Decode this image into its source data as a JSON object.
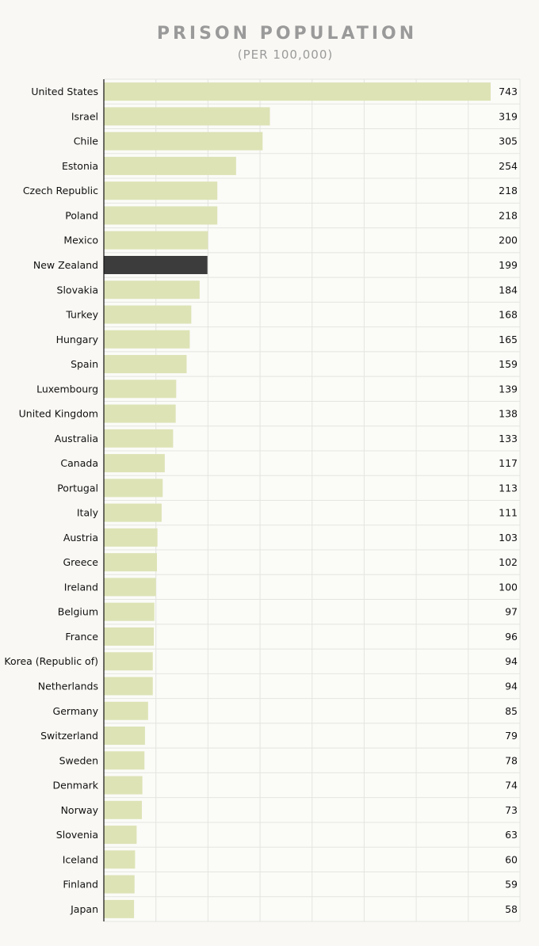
{
  "chart_data": {
    "type": "bar",
    "orientation": "horizontal",
    "title": "PRISON POPULATION",
    "subtitle": "(PER 100,000)",
    "categories": [
      "United States",
      "Israel",
      "Chile",
      "Estonia",
      "Czech Republic",
      "Poland",
      "Mexico",
      "New Zealand",
      "Slovakia",
      "Turkey",
      "Hungary",
      "Spain",
      "Luxembourg",
      "United Kingdom",
      "Australia",
      "Canada",
      "Portugal",
      "Italy",
      "Austria",
      "Greece",
      "Ireland",
      "Belgium",
      "France",
      "Korea (Republic of)",
      "Netherlands",
      "Germany",
      "Switzerland",
      "Sweden",
      "Denmark",
      "Norway",
      "Slovenia",
      "Iceland",
      "Finland",
      "Japan"
    ],
    "values": [
      743,
      319,
      305,
      254,
      218,
      218,
      200,
      199,
      184,
      168,
      165,
      159,
      139,
      138,
      133,
      117,
      113,
      111,
      103,
      102,
      100,
      97,
      96,
      94,
      94,
      85,
      79,
      78,
      74,
      73,
      63,
      60,
      59,
      58
    ],
    "highlight": "New Zealand",
    "xlim": [
      0,
      800
    ],
    "grid": true,
    "colors": {
      "bar": "#dde3b5",
      "highlight": "#3c3c3c",
      "grid": "#e4e4e0",
      "title": "#9a9a9a",
      "background": "#f9f8f4"
    }
  }
}
